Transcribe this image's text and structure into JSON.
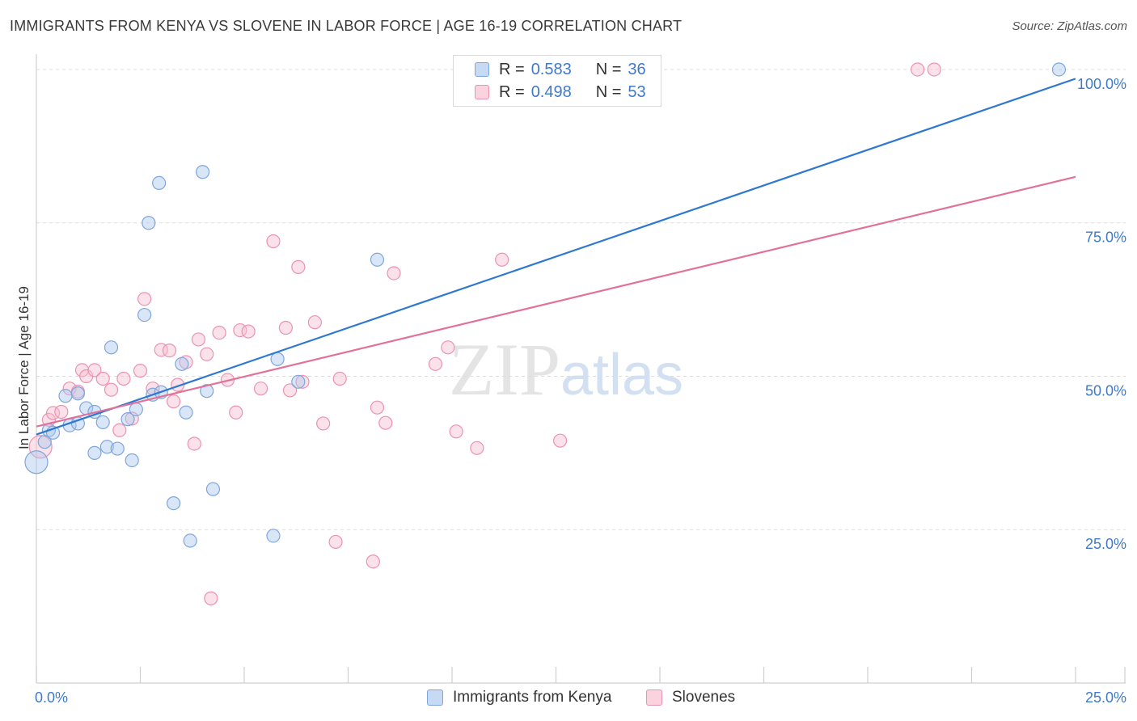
{
  "header": {
    "title": "IMMIGRANTS FROM KENYA VS SLOVENE IN LABOR FORCE | AGE 16-19 CORRELATION CHART",
    "source": "Source: ZipAtlas.com"
  },
  "watermark": {
    "zip": "ZIP",
    "atlas": "atlas"
  },
  "colors": {
    "blue_fill": "#aac8ee",
    "blue_stroke": "#7ea6dc",
    "blue_line": "#2f78d0",
    "pink_fill": "#f6bfd0",
    "pink_stroke": "#ea93af",
    "pink_line": "#e2719a",
    "axis_text": "#3f7ac9",
    "grid": "#dcdcdc"
  },
  "legend": {
    "r_label": "R = ",
    "n_label": "N = ",
    "series": [
      {
        "r": "0.583",
        "n": "36"
      },
      {
        "r": "0.498",
        "n": "53"
      }
    ]
  },
  "chart_data": {
    "type": "scatter",
    "title": "IMMIGRANTS FROM KENYA VS SLOVENE IN LABOR FORCE | AGE 16-19 CORRELATION CHART",
    "xlabel": "",
    "ylabel": "In Labor Force | Age 16-19",
    "xlim": [
      0,
      25
    ],
    "ylim": [
      0,
      102.5
    ],
    "x_tick_labels": [
      {
        "value": 0,
        "label": "0.0%"
      },
      {
        "value": 25,
        "label": "25.0%"
      }
    ],
    "y_tick_labels": [
      {
        "value": 25,
        "label": "25.0%"
      },
      {
        "value": 50,
        "label": "50.0%"
      },
      {
        "value": 75,
        "label": "75.0%"
      },
      {
        "value": 100,
        "label": "100.0%"
      }
    ],
    "y_grid": [
      25,
      50,
      75,
      100
    ],
    "series": [
      {
        "name": "Immigrants from Kenya",
        "color": "blue",
        "r": 0.583,
        "n": 36,
        "trend": {
          "x": [
            0,
            25
          ],
          "y": [
            40.5,
            98.5
          ]
        },
        "points": [
          {
            "x": 0.0,
            "y": 36.0,
            "big": true
          },
          {
            "x": 0.2,
            "y": 39.3
          },
          {
            "x": 0.3,
            "y": 41.2
          },
          {
            "x": 0.4,
            "y": 40.8
          },
          {
            "x": 0.7,
            "y": 46.8
          },
          {
            "x": 0.8,
            "y": 42.0
          },
          {
            "x": 1.0,
            "y": 47.2
          },
          {
            "x": 1.0,
            "y": 42.3
          },
          {
            "x": 1.2,
            "y": 44.8
          },
          {
            "x": 1.4,
            "y": 44.2
          },
          {
            "x": 1.4,
            "y": 37.5
          },
          {
            "x": 1.6,
            "y": 42.5
          },
          {
            "x": 1.7,
            "y": 38.5
          },
          {
            "x": 1.8,
            "y": 54.7
          },
          {
            "x": 1.95,
            "y": 38.2
          },
          {
            "x": 2.2,
            "y": 43.0
          },
          {
            "x": 2.3,
            "y": 36.3
          },
          {
            "x": 2.4,
            "y": 44.6
          },
          {
            "x": 2.6,
            "y": 60.0
          },
          {
            "x": 2.7,
            "y": 75.0
          },
          {
            "x": 2.8,
            "y": 47.0
          },
          {
            "x": 2.95,
            "y": 81.5
          },
          {
            "x": 3.0,
            "y": 47.4
          },
          {
            "x": 3.3,
            "y": 29.3
          },
          {
            "x": 3.5,
            "y": 52.0
          },
          {
            "x": 3.6,
            "y": 44.1
          },
          {
            "x": 3.7,
            "y": 23.2
          },
          {
            "x": 4.0,
            "y": 83.3
          },
          {
            "x": 4.1,
            "y": 47.6
          },
          {
            "x": 4.25,
            "y": 31.6
          },
          {
            "x": 5.7,
            "y": 24.0
          },
          {
            "x": 5.8,
            "y": 52.8
          },
          {
            "x": 6.3,
            "y": 49.1
          },
          {
            "x": 8.2,
            "y": 69.0
          },
          {
            "x": 24.6,
            "y": 100.0
          }
        ]
      },
      {
        "name": "Slovenes",
        "color": "pink",
        "r": 0.498,
        "n": 53,
        "trend": {
          "x": [
            0,
            25
          ],
          "y": [
            41.8,
            82.5
          ]
        },
        "points": [
          {
            "x": 0.1,
            "y": 38.5,
            "big": true
          },
          {
            "x": 0.3,
            "y": 42.9
          },
          {
            "x": 0.4,
            "y": 44.0
          },
          {
            "x": 0.6,
            "y": 44.2
          },
          {
            "x": 0.8,
            "y": 48.0
          },
          {
            "x": 1.0,
            "y": 47.5
          },
          {
            "x": 1.1,
            "y": 51.0
          },
          {
            "x": 1.2,
            "y": 50.0
          },
          {
            "x": 1.4,
            "y": 51.0
          },
          {
            "x": 1.6,
            "y": 49.6
          },
          {
            "x": 1.8,
            "y": 47.8
          },
          {
            "x": 2.0,
            "y": 41.2
          },
          {
            "x": 2.1,
            "y": 49.6
          },
          {
            "x": 2.3,
            "y": 43.1
          },
          {
            "x": 2.5,
            "y": 50.9
          },
          {
            "x": 2.6,
            "y": 62.6
          },
          {
            "x": 2.8,
            "y": 48.0
          },
          {
            "x": 3.0,
            "y": 54.3
          },
          {
            "x": 3.2,
            "y": 54.2
          },
          {
            "x": 3.3,
            "y": 45.9
          },
          {
            "x": 3.4,
            "y": 48.6
          },
          {
            "x": 3.6,
            "y": 52.3
          },
          {
            "x": 3.8,
            "y": 39.0
          },
          {
            "x": 3.9,
            "y": 56.0
          },
          {
            "x": 4.1,
            "y": 53.6
          },
          {
            "x": 4.2,
            "y": 13.8
          },
          {
            "x": 4.4,
            "y": 57.1
          },
          {
            "x": 4.6,
            "y": 49.4
          },
          {
            "x": 4.8,
            "y": 44.1
          },
          {
            "x": 4.9,
            "y": 57.5
          },
          {
            "x": 5.1,
            "y": 57.3
          },
          {
            "x": 5.4,
            "y": 48.0
          },
          {
            "x": 5.7,
            "y": 72.0
          },
          {
            "x": 6.0,
            "y": 57.9
          },
          {
            "x": 6.1,
            "y": 47.7
          },
          {
            "x": 6.3,
            "y": 67.8
          },
          {
            "x": 6.4,
            "y": 49.1
          },
          {
            "x": 6.7,
            "y": 58.8
          },
          {
            "x": 6.9,
            "y": 42.3
          },
          {
            "x": 7.2,
            "y": 23.0
          },
          {
            "x": 7.3,
            "y": 49.6
          },
          {
            "x": 8.1,
            "y": 19.8
          },
          {
            "x": 8.2,
            "y": 44.9
          },
          {
            "x": 8.4,
            "y": 42.4
          },
          {
            "x": 8.6,
            "y": 66.8
          },
          {
            "x": 9.6,
            "y": 52.0
          },
          {
            "x": 9.9,
            "y": 54.7
          },
          {
            "x": 10.1,
            "y": 41.0
          },
          {
            "x": 10.6,
            "y": 38.3
          },
          {
            "x": 11.2,
            "y": 69.0
          },
          {
            "x": 12.6,
            "y": 39.5
          },
          {
            "x": 21.2,
            "y": 100.0
          },
          {
            "x": 21.6,
            "y": 100.0
          }
        ]
      }
    ]
  }
}
